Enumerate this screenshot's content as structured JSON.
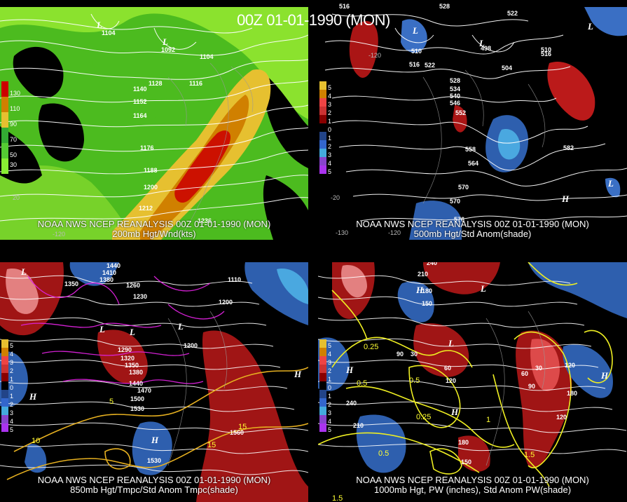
{
  "main_title": "00Z 01-01-1990 (MON)",
  "panels": [
    {
      "id": "p1",
      "caption1": "NOAA NWS NCEP REANALYSIS 00Z 01-01-1990 (MON)",
      "caption2": "200mb Hgt/Wnd(kts)",
      "legend": [
        {
          "label": "130",
          "color": "#cc0000"
        },
        {
          "label": "110",
          "color": "#d08000"
        },
        {
          "label": "90",
          "color": "#e6c030"
        },
        {
          "label": "70",
          "color": "#33aa33"
        },
        {
          "label": "50",
          "color": "#55cc33"
        },
        {
          "label": "30",
          "color": "#88ee33"
        }
      ],
      "contour_labels": [
        "1104",
        "1092",
        "1104",
        "1128",
        "1116",
        "1140",
        "1152",
        "1164",
        "1176",
        "1188",
        "1200",
        "1212",
        "1236"
      ],
      "lon_labels": [
        "-120",
        "20"
      ]
    },
    {
      "id": "p2",
      "caption1": "NOAA NWS NCEP REANALYSIS 00Z 01-01-1990 (MON)",
      "caption2": "500mb Hgt/Std Anom(shade)",
      "legend": [
        {
          "label": "5",
          "color": "#cc2222"
        },
        {
          "label": "4",
          "color": "#e07030"
        },
        {
          "label": "3",
          "color": "#ee4444"
        },
        {
          "label": "2",
          "color": "#cc3333"
        },
        {
          "label": "1",
          "color": "#880000"
        },
        {
          "label": "0",
          "color": "#000000"
        },
        {
          "label": "1",
          "color": "#224488"
        },
        {
          "label": "2",
          "color": "#3366cc"
        },
        {
          "label": "3",
          "color": "#44aadd"
        },
        {
          "label": "4",
          "color": "#8844cc"
        },
        {
          "label": "5",
          "color": "#aa33ee"
        }
      ],
      "contour_labels": [
        "516",
        "528",
        "522",
        "498",
        "504",
        "510",
        "516",
        "510",
        "516",
        "522",
        "528",
        "534",
        "540",
        "546",
        "552",
        "558",
        "564",
        "570",
        "576",
        "582",
        "570"
      ],
      "lon_labels": [
        "-130",
        "-120",
        "-120",
        "-20"
      ]
    },
    {
      "id": "p3",
      "caption1": "NOAA NWS NCEP REANALYSIS 00Z 01-01-1990 (MON)",
      "caption2": "850mb Hgt/Tmpc/Std Anom Tmpc(shade)",
      "legend": [
        {
          "label": "5",
          "color": "#cc2222"
        },
        {
          "label": "4",
          "color": "#e07030"
        },
        {
          "label": "3",
          "color": "#ee4444"
        },
        {
          "label": "2",
          "color": "#cc3333"
        },
        {
          "label": "1",
          "color": "#880000"
        },
        {
          "label": "0",
          "color": "#000000"
        },
        {
          "label": "1",
          "color": "#224488"
        },
        {
          "label": "2",
          "color": "#3366cc"
        },
        {
          "label": "3",
          "color": "#44aadd"
        },
        {
          "label": "4",
          "color": "#8844cc"
        },
        {
          "label": "5",
          "color": "#aa33ee"
        }
      ],
      "contour_labels": [
        "1440",
        "1410",
        "1380",
        "1350",
        "1260",
        "1230",
        "1290",
        "1320",
        "1350",
        "1380",
        "1440",
        "1470",
        "1500",
        "1530",
        "1200",
        "1560",
        "1530",
        "1110",
        "1200"
      ],
      "temp_labels": [
        "5",
        "10",
        "15",
        "15"
      ],
      "lon_labels": []
    },
    {
      "id": "p4",
      "caption1": "NOAA NWS NCEP REANALYSIS 00Z 01-01-1990 (MON)",
      "caption2": "1000mb Hgt, PW (inches), Std Anom PW(shade)",
      "legend": [
        {
          "label": "5",
          "color": "#cc2222"
        },
        {
          "label": "4",
          "color": "#e07030"
        },
        {
          "label": "3",
          "color": "#ee4444"
        },
        {
          "label": "2",
          "color": "#cc3333"
        },
        {
          "label": "1",
          "color": "#880000"
        },
        {
          "label": "0",
          "color": "#000000"
        },
        {
          "label": "1",
          "color": "#224488"
        },
        {
          "label": "2",
          "color": "#3366cc"
        },
        {
          "label": "3",
          "color": "#44aadd"
        },
        {
          "label": "4",
          "color": "#8844cc"
        },
        {
          "label": "5",
          "color": "#aa33ee"
        }
      ],
      "contour_labels": [
        "240",
        "210",
        "180",
        "150",
        "120",
        "90",
        "60",
        "30",
        "30",
        "60",
        "90",
        "120",
        "240",
        "210",
        "180",
        "150",
        "180",
        "120"
      ],
      "pw_labels": [
        "0.25",
        "0.5",
        "0.25",
        "0.5",
        "0.5",
        "1",
        "1.5",
        "1.5"
      ],
      "lon_labels": []
    }
  ]
}
